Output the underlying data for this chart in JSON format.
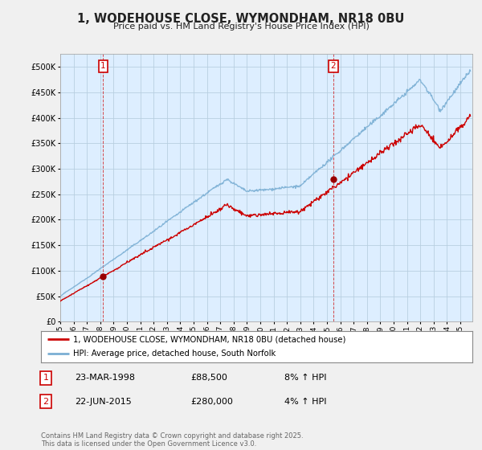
{
  "title": "1, WODEHOUSE CLOSE, WYMONDHAM, NR18 0BU",
  "subtitle": "Price paid vs. HM Land Registry's House Price Index (HPI)",
  "legend_line1": "1, WODEHOUSE CLOSE, WYMONDHAM, NR18 0BU (detached house)",
  "legend_line2": "HPI: Average price, detached house, South Norfolk",
  "annotation1_label": "1",
  "annotation1_date": "23-MAR-1998",
  "annotation1_price": "£88,500",
  "annotation1_hpi": "8% ↑ HPI",
  "annotation2_label": "2",
  "annotation2_date": "22-JUN-2015",
  "annotation2_price": "£280,000",
  "annotation2_hpi": "4% ↑ HPI",
  "footer": "Contains HM Land Registry data © Crown copyright and database right 2025.\nThis data is licensed under the Open Government Licence v3.0.",
  "red_color": "#cc0000",
  "blue_color": "#7bafd4",
  "dot_color": "#990000",
  "ylim": [
    0,
    525000
  ],
  "yticks": [
    0,
    50000,
    100000,
    150000,
    200000,
    250000,
    300000,
    350000,
    400000,
    450000,
    500000
  ],
  "xlim_start": 1995.0,
  "xlim_end": 2025.9,
  "plot_bg_color": "#ddeeff",
  "background_color": "#f0f0f0",
  "grid_color": "#b8cfe0",
  "t1_x": 1998.22,
  "t1_y": 88500,
  "t2_x": 2015.47,
  "t2_y": 280000
}
